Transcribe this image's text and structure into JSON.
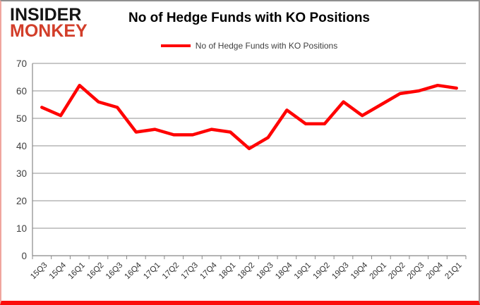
{
  "logo": {
    "line1": "INSIDER",
    "line2": "MONKEY"
  },
  "legend": {
    "label": "No of Hedge Funds with KO Positions"
  },
  "colors": {
    "line_red": "#ff0000",
    "logo_red": "#d23e2a",
    "gridline": "#a6a6a6",
    "axis": "#888888",
    "tick_text": "#404040",
    "frame_bottom_red": "#fb0d0b",
    "frame_left_pink": "#f0a69e",
    "frame_gray": "#8f8f8f"
  },
  "chart_data": {
    "type": "line",
    "title": "No of Hedge Funds with KO Positions",
    "categories": [
      "15Q3",
      "15Q4",
      "16Q1",
      "16Q2",
      "16Q3",
      "16Q4",
      "17Q1",
      "17Q2",
      "17Q3",
      "17Q4",
      "18Q1",
      "18Q2",
      "18Q3",
      "18Q4",
      "19Q1",
      "19Q2",
      "19Q3",
      "19Q4",
      "20Q1",
      "20Q2",
      "20Q3",
      "20Q4",
      "21Q1"
    ],
    "series": [
      {
        "name": "No of Hedge Funds with KO Positions",
        "color": "#ff0000",
        "values": [
          54,
          51,
          62,
          56,
          54,
          45,
          46,
          44,
          44,
          46,
          45,
          39,
          43,
          53,
          48,
          48,
          56,
          51,
          55,
          59,
          60,
          62,
          61
        ]
      }
    ],
    "xlabel": "",
    "ylabel": "",
    "ylim": [
      0,
      70
    ],
    "ytick_step": 10,
    "grid": true,
    "legend_position": "top"
  }
}
